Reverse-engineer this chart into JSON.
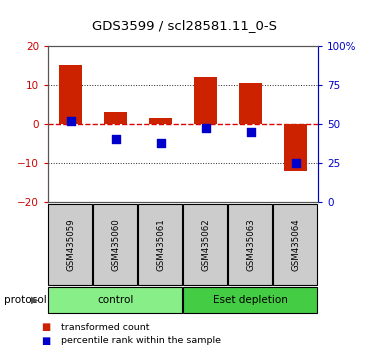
{
  "title": "GDS3599 / scl28581.11_0-S",
  "samples": [
    "GSM435059",
    "GSM435060",
    "GSM435061",
    "GSM435062",
    "GSM435063",
    "GSM435064"
  ],
  "red_bars": [
    15.0,
    3.0,
    1.5,
    12.0,
    10.5,
    -12.0
  ],
  "blue_squares_left_axis": [
    0.8,
    -4.0,
    -5.0,
    -1.0,
    -2.0,
    -10.0
  ],
  "ylim_left": [
    -20,
    20
  ],
  "yticks_left": [
    -20,
    -10,
    0,
    10,
    20
  ],
  "groups": [
    {
      "label": "control",
      "indices": [
        0,
        1,
        2
      ],
      "color": "#88ee88"
    },
    {
      "label": "Eset depletion",
      "indices": [
        3,
        4,
        5
      ],
      "color": "#44cc44"
    }
  ],
  "protocol_label": "protocol",
  "bar_color": "#cc2200",
  "square_color": "#0000cc",
  "legend_entries": [
    "transformed count",
    "percentile rank within the sample"
  ],
  "hline_zero_color": "#dd0000",
  "hline_dotted_color": "#222222",
  "bg_color": "#ffffff",
  "plot_bg": "#ffffff",
  "tick_label_bg": "#cccccc",
  "bar_width": 0.5,
  "square_size": 30,
  "left_tick_color": "#cc0000",
  "right_tick_color": "#0000cc"
}
